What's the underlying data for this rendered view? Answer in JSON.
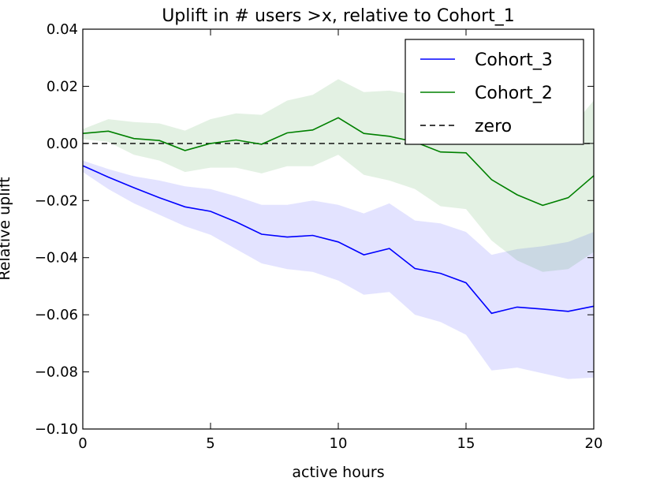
{
  "chart_data": {
    "type": "line",
    "title": "Uplift in # users >x, relative to Cohort_1",
    "xlabel": "active hours",
    "ylabel": "Relative uplift",
    "xlim": [
      0,
      20
    ],
    "ylim": [
      -0.1,
      0.04
    ],
    "xticks": [
      0,
      5,
      10,
      15,
      20
    ],
    "xtick_labels": [
      "0",
      "5",
      "10",
      "15",
      "20"
    ],
    "yticks": [
      -0.1,
      -0.08,
      -0.06,
      -0.04,
      -0.02,
      0.0,
      0.02,
      0.04
    ],
    "ytick_labels": [
      "−0.10",
      "−0.08",
      "−0.06",
      "−0.04",
      "−0.02",
      "0.00",
      "0.02",
      "0.04"
    ],
    "grid": false,
    "legend_position": "upper-right",
    "x": [
      0,
      1,
      2,
      3,
      4,
      5,
      6,
      7,
      8,
      9,
      10,
      11,
      12,
      13,
      14,
      15,
      16,
      17,
      18,
      19,
      20
    ],
    "series": [
      {
        "name": "Cohort_3",
        "color": "#0000ff",
        "band_color": "#0000ff",
        "values": [
          -0.0078,
          -0.0118,
          -0.0155,
          -0.019,
          -0.0222,
          -0.0238,
          -0.0275,
          -0.0318,
          -0.0328,
          -0.0322,
          -0.0345,
          -0.039,
          -0.0368,
          -0.0438,
          -0.0455,
          -0.0488,
          -0.0595,
          -0.0573,
          -0.058,
          -0.0588,
          -0.057
        ],
        "lower": [
          -0.01,
          -0.016,
          -0.021,
          -0.025,
          -0.029,
          -0.032,
          -0.037,
          -0.042,
          -0.044,
          -0.045,
          -0.048,
          -0.053,
          -0.052,
          -0.06,
          -0.0625,
          -0.067,
          -0.0795,
          -0.0785,
          -0.0805,
          -0.0825,
          -0.082
        ],
        "upper": [
          -0.006,
          -0.009,
          -0.0115,
          -0.013,
          -0.015,
          -0.016,
          -0.0185,
          -0.0215,
          -0.0215,
          -0.02,
          -0.0215,
          -0.0245,
          -0.021,
          -0.027,
          -0.028,
          -0.031,
          -0.039,
          -0.037,
          -0.036,
          -0.0345,
          -0.031
        ]
      },
      {
        "name": "Cohort_2",
        "color": "#008000",
        "band_color": "#008000",
        "values": [
          0.0035,
          0.0043,
          0.0017,
          0.001,
          -0.0025,
          0.0,
          0.0012,
          -0.0003,
          0.0037,
          0.0047,
          0.009,
          0.0035,
          0.0025,
          0.0005,
          -0.003,
          -0.0033,
          -0.0127,
          -0.018,
          -0.0217,
          -0.019,
          -0.0113
        ],
        "lower": [
          0.0015,
          0.0005,
          -0.004,
          -0.006,
          -0.01,
          -0.0085,
          -0.0085,
          -0.0105,
          -0.008,
          -0.008,
          -0.004,
          -0.011,
          -0.013,
          -0.016,
          -0.022,
          -0.023,
          -0.034,
          -0.041,
          -0.045,
          -0.044,
          -0.038
        ],
        "upper": [
          0.005,
          0.0085,
          0.0075,
          0.007,
          0.0045,
          0.0085,
          0.0105,
          0.01,
          0.015,
          0.017,
          0.0225,
          0.018,
          0.0185,
          0.017,
          0.016,
          0.014,
          0.006,
          0.002,
          0.001,
          0.0045,
          0.015
        ]
      },
      {
        "name": "zero",
        "color": "#000000",
        "dashed": true,
        "values": [
          0,
          0,
          0,
          0,
          0,
          0,
          0,
          0,
          0,
          0,
          0,
          0,
          0,
          0,
          0,
          0,
          0,
          0,
          0,
          0,
          0
        ]
      }
    ]
  }
}
